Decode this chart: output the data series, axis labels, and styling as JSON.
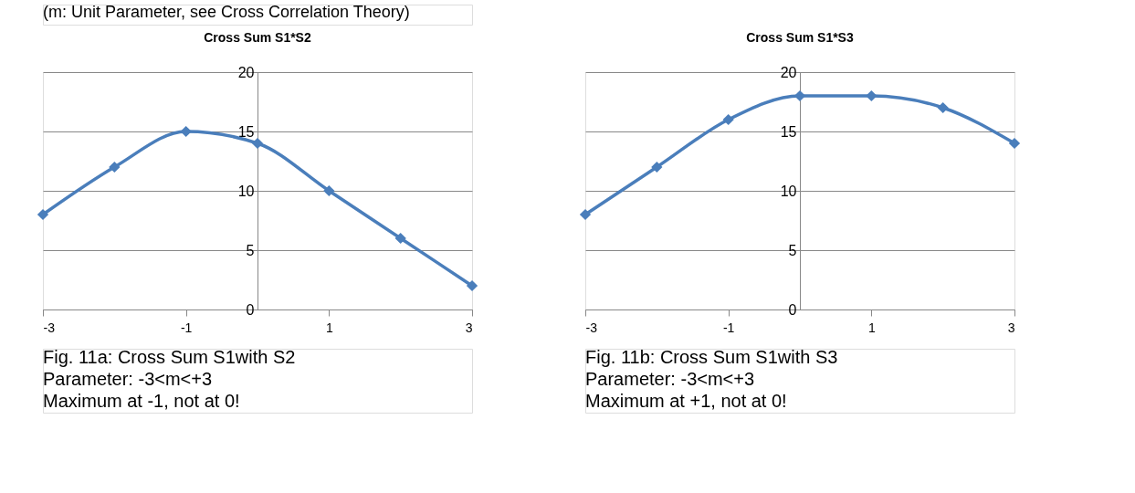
{
  "chart_data": [
    {
      "type": "line",
      "title": "Cross Sum S1*S2",
      "x": [
        -3,
        -2,
        -1,
        0,
        1,
        2,
        3
      ],
      "series": [
        {
          "color": "#4a7ebb",
          "values": [
            8,
            12,
            15,
            14,
            10,
            6,
            2
          ]
        }
      ],
      "xlim": [
        -3,
        3
      ],
      "xticks": [
        -3,
        -1,
        1,
        3
      ],
      "ylim": [
        0,
        20
      ],
      "yticks": [
        0,
        5,
        10,
        15,
        20
      ],
      "grid": "y",
      "marker": "diamond",
      "line_style": "solid",
      "annotations": [
        "(m: Unit Parameter, see Cross Correlation Theory)",
        "Fig. 11a: Cross Sum S1with S2",
        "Parameter: -3<m<+3",
        "Maximum at -1, not at 0!"
      ]
    },
    {
      "type": "line",
      "title": "Cross Sum S1*S3",
      "x": [
        -3,
        -2,
        -1,
        0,
        1,
        2,
        3
      ],
      "series": [
        {
          "color": "#4a7ebb",
          "values": [
            8,
            12,
            16,
            18,
            18,
            17,
            14
          ]
        }
      ],
      "xlim": [
        -3,
        3
      ],
      "xticks": [
        -3,
        -1,
        1,
        3
      ],
      "ylim": [
        0,
        20
      ],
      "yticks": [
        0,
        5,
        10,
        15,
        20
      ],
      "grid": "y",
      "marker": "diamond",
      "line_style": "solid",
      "annotations": [
        "Fig. 11b: Cross Sum S1with S3",
        "Parameter: -3<m<+3",
        "Maximum at +1, not at 0!"
      ]
    }
  ]
}
